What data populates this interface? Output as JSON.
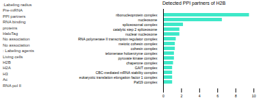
{
  "chart_data": {
    "type": "bar",
    "orientation": "horizontal",
    "title": "Detected PPI partners of H2B",
    "categories": [
      "ribonucleoprotein complex",
      "nucleosome",
      "spliceosomal complex",
      "catalytic step 2 spliceosome",
      "nuclear nucleosome",
      "RNA polymerase II transcription regulator complex",
      "meiotic cohesin complex",
      "cohesin complex",
      "telomerase holoenzyme complex",
      "pyruvate kinase complex",
      "chaperone complex",
      "GAIT complex",
      "CBC-mediated mRNA stability complex",
      "eukaryotic translation elongation factor 1 complex",
      "Paf19 complex"
    ],
    "values": [
      9.5,
      6.5,
      2.2,
      1.8,
      1.8,
      1.4,
      1.3,
      1.3,
      1.2,
      1.2,
      1.1,
      1.0,
      1.0,
      1.0,
      1.0
    ],
    "color": "#3ee8c8",
    "xlim": [
      0,
      10
    ],
    "xticks": [
      0,
      2,
      4,
      6,
      8,
      10
    ],
    "grid": false,
    "annotations": [
      ":Labeling radius",
      "Pre-mRNA",
      "PPI partners",
      "RNA binding",
      "proteins",
      "HaloTag",
      "No association",
      "No association",
      ": Labeling agents",
      "Living cells",
      "H2B",
      "H2A",
      "H3",
      "Ac",
      "RNA pol II"
    ]
  }
}
